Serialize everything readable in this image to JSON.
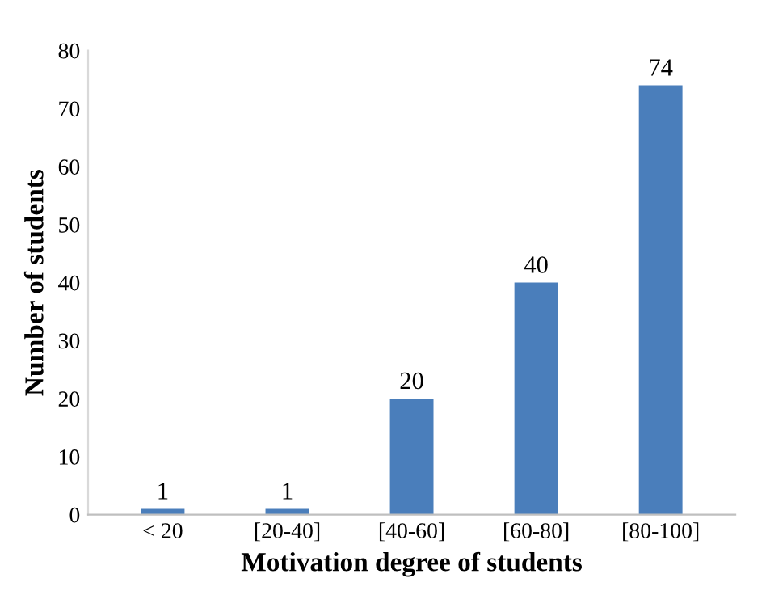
{
  "chart_data": {
    "type": "bar",
    "xlabel": "Motivation degree of students",
    "ylabel": "Number of students",
    "categories": [
      "< 20",
      "[20-40]",
      "[40-60]",
      "[60-80]",
      "[80-100]"
    ],
    "values": [
      1,
      1,
      20,
      40,
      74
    ],
    "color": "#4a7ebb",
    "ylim": [
      0,
      80
    ],
    "yticks": [
      0,
      10,
      20,
      30,
      40,
      50,
      60,
      70,
      80
    ],
    "grid": false,
    "data_labels": true
  }
}
